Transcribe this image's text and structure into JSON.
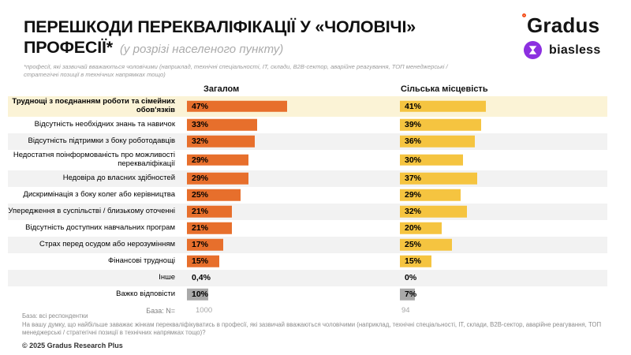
{
  "header": {
    "title_line1": "ПЕРЕШКОДИ ПЕРЕКВАЛІФІКАЦІЇ У «ЧОЛОВІЧІ»",
    "title_line2": "ПРОФЕСІЇ*",
    "subtitle": "(у розрізі населеного пункту)",
    "footnote_line1": "*професії, які зазвичай вважаються чоловічими (наприклад, технічні спеціальності, ІТ, склади, B2B-сектор, аварійне реагування, ТОП менеджерські /",
    "footnote_line2": "стратегічні позиції в технічних напрямках тощо)",
    "logos": {
      "gradus": "Gradus",
      "biasless": "biasless"
    }
  },
  "chart": {
    "col_overall": "Загалом",
    "col_rural": "Сільська місцевість",
    "base_label": "База: N=",
    "base_overall": "1000",
    "base_rural": "94"
  },
  "chart_data": {
    "type": "bar",
    "orientation": "horizontal",
    "title": "ПЕРЕШКОДИ ПЕРЕКВАЛІФІКАЦІЇ У «ЧОЛОВІЧІ» ПРОФЕСІЇ* (у розрізі населеного пункту)",
    "categories": [
      "Труднощі з поєднанням роботи та сімейних обов'язків",
      "Відсутність необхідних знань та навичок",
      "Відсутність підтримки з боку роботодавців",
      "Недостатня поінформованість про можливості перекваліфікації",
      "Недовіра до власних здібностей",
      "Дискримінація з боку колег або керівництва",
      "Упередження в суспільстві / близькому оточенні",
      "Відсутність доступних навчальних програм",
      "Страх перед осудом або нерозумінням",
      "Фінансові труднощі",
      "Інше",
      "Важко відповісти"
    ],
    "series": [
      {
        "name": "Загалом",
        "color": "#E76F2C",
        "values": [
          47,
          33,
          32,
          29,
          29,
          25,
          21,
          21,
          17,
          15,
          0.4,
          10
        ]
      },
      {
        "name": "Сільська місцевість",
        "color": "#F5C440",
        "values": [
          41,
          39,
          36,
          30,
          37,
          29,
          32,
          20,
          25,
          15,
          0,
          7
        ]
      }
    ],
    "value_labels": {
      "overall": [
        "47%",
        "33%",
        "32%",
        "29%",
        "29%",
        "25%",
        "21%",
        "21%",
        "17%",
        "15%",
        "0,4%",
        "10%"
      ],
      "rural": [
        "41%",
        "39%",
        "36%",
        "30%",
        "37%",
        "29%",
        "32%",
        "20%",
        "25%",
        "15%",
        "0%",
        "7%"
      ]
    },
    "highlight_row": 0,
    "muted_row": 11,
    "base": {
      "label": "База: N=",
      "overall": 1000,
      "rural": 94
    },
    "legend_position": "column-headers",
    "grid": false,
    "xlim": [
      0,
      100
    ]
  },
  "colors": {
    "overall_bar": "#E76F2C",
    "rural_bar": "#F5C440",
    "muted_bar": "#A9A9A9",
    "highlight_bg": "#FBF3D6",
    "stripe_bg": "#F2F2F2",
    "gradus_dot": "#F4511E",
    "biasless_purple": "#8C2FE0"
  },
  "footer": {
    "base_note": "База: всі респондентки",
    "question": "На вашу думку, що найбільше заважає жінкам перекваліфікуватись в професії, які зазвичай вважаються чоловічими (наприклад, технічні спеціальності, ІТ, склади, B2B-сектор, аварійне реагування, ТОП менеджерські / стратегічні позиції в технічних напрямках тощо)?",
    "copyright": "© 2025 Gradus Research Plus"
  }
}
